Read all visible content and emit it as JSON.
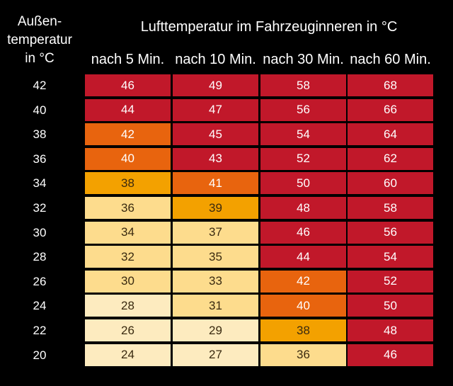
{
  "chart_data": {
    "type": "table",
    "row_header": [
      "Außen-",
      "temperatur",
      "in °C"
    ],
    "title": "Lufttemperatur im Fahrzeuginneren in °C",
    "columns": [
      "nach 5 Min.",
      "nach 10 Min.",
      "nach 30 Min.",
      "nach 60 Min."
    ],
    "rows": [
      {
        "outside": "42",
        "values": [
          46,
          49,
          58,
          68
        ]
      },
      {
        "outside": "40",
        "values": [
          44,
          47,
          56,
          66
        ]
      },
      {
        "outside": "38",
        "values": [
          42,
          45,
          54,
          64
        ]
      },
      {
        "outside": "36",
        "values": [
          40,
          43,
          52,
          62
        ]
      },
      {
        "outside": "34",
        "values": [
          38,
          41,
          50,
          60
        ]
      },
      {
        "outside": "32",
        "values": [
          36,
          39,
          48,
          58
        ]
      },
      {
        "outside": "30",
        "values": [
          34,
          37,
          46,
          56
        ]
      },
      {
        "outside": "28",
        "values": [
          32,
          35,
          44,
          54
        ]
      },
      {
        "outside": "26",
        "values": [
          30,
          33,
          42,
          52
        ]
      },
      {
        "outside": "24",
        "values": [
          28,
          31,
          40,
          50
        ]
      },
      {
        "outside": "22",
        "values": [
          26,
          29,
          38,
          48
        ]
      },
      {
        "outside": "20",
        "values": [
          24,
          27,
          36,
          46
        ]
      }
    ],
    "color_scale": [
      {
        "max": 29,
        "color": "#fdebbf"
      },
      {
        "max": 37,
        "color": "#fddc8d"
      },
      {
        "max": 39,
        "color": "#f3a100"
      },
      {
        "max": 42,
        "color": "#e8640e"
      },
      {
        "max": 99,
        "color": "#c1182a"
      }
    ],
    "dark_text_max": 39
  }
}
